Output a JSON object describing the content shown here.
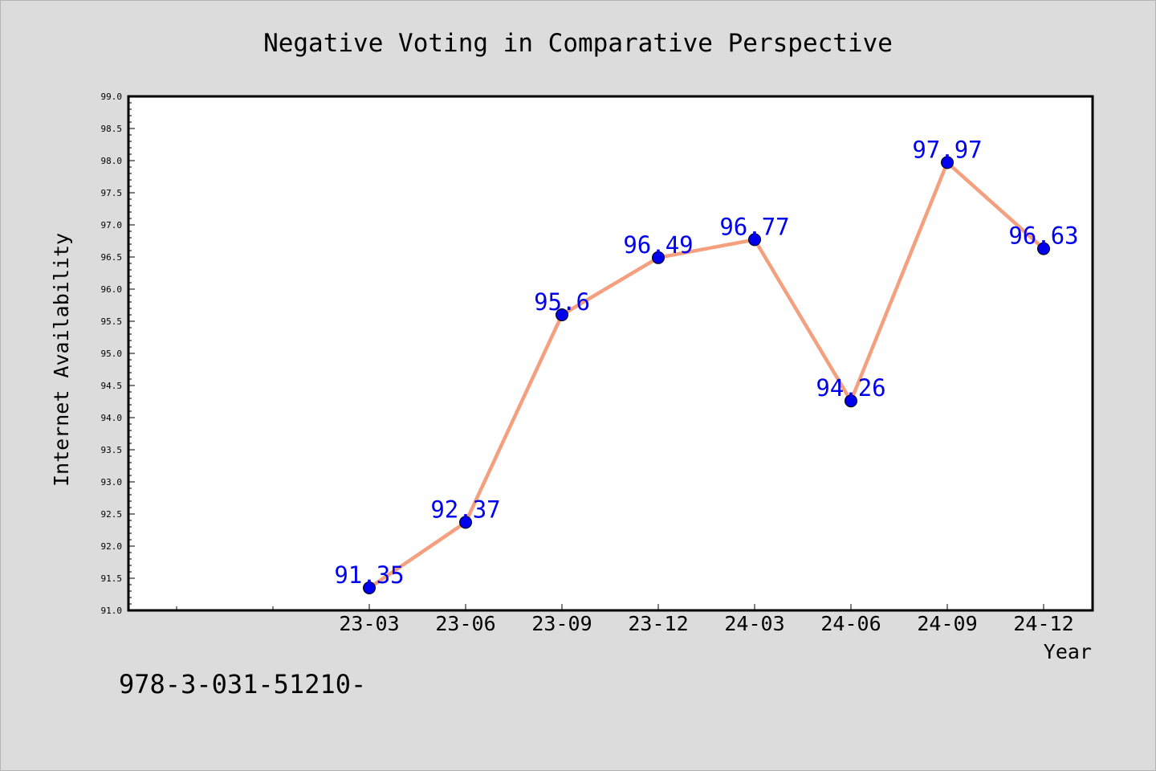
{
  "chart_data": {
    "type": "line",
    "title": "Negative Voting in Comparative Perspective",
    "xlabel": "Year",
    "ylabel": "Internet Availability",
    "categories": [
      "23-03",
      "23-06",
      "23-09",
      "23-12",
      "24-03",
      "24-06",
      "24-09",
      "24-12"
    ],
    "values": [
      91.35,
      92.37,
      95.6,
      96.49,
      96.77,
      94.26,
      97.97,
      96.63
    ],
    "data_labels": [
      "91.35",
      "92.37",
      "95.6",
      "96.49",
      "96.77",
      "94.26",
      "97.97",
      "96.63"
    ],
    "ylim": [
      91.0,
      99.0
    ],
    "yticks": [
      "91.0",
      "91.5",
      "92.0",
      "92.5",
      "93.0",
      "93.5",
      "94.0",
      "94.5",
      "95.0",
      "95.5",
      "96.0",
      "96.5",
      "97.0",
      "97.5",
      "98.0",
      "98.5",
      "99.0"
    ],
    "grid": false,
    "colors": {
      "line": "#f4a07f",
      "marker": "#0000ee",
      "label": "#0000ee",
      "background": "#dcdcdc",
      "plot_background": "#ffffff"
    }
  },
  "footer_text": "978-3-031-51210-"
}
